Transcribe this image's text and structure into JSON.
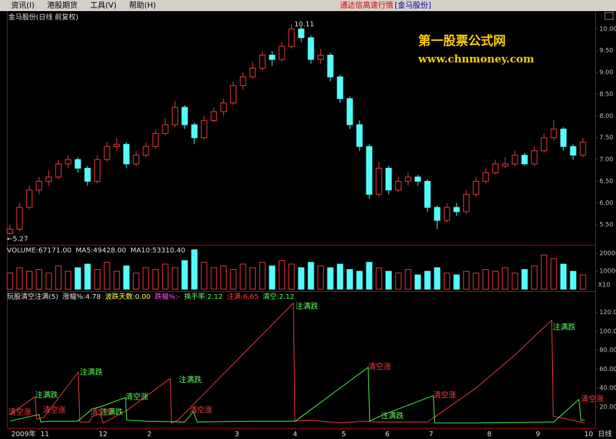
{
  "menu": [
    "资讯(I)",
    "港股期货",
    "工具(V)",
    "帮助(H)"
  ],
  "window_title": {
    "app": "通达信高速行情",
    "stock": "[金马股份]"
  },
  "watermark": [
    "第一股票公式网",
    "www.chnmoney.com"
  ],
  "period": "日线",
  "chart_data": [
    {
      "type": "candlestick",
      "title": "金马股份(日线 前复权)",
      "up_color": "#ff3c3c",
      "down_color": "#54fcfc",
      "xlim": [
        -0.3,
        59.7
      ],
      "ylim": [
        5.04,
        10.38
      ],
      "yticks": [
        {
          "value": 5.5,
          "label": "5.50"
        },
        {
          "value": 6,
          "label": "6.00"
        },
        {
          "value": 6.5,
          "label": "6.50"
        },
        {
          "value": 7,
          "label": "7.00"
        },
        {
          "value": 7.5,
          "label": "7.50"
        },
        {
          "value": 8,
          "label": "8.00"
        },
        {
          "value": 8.5,
          "label": "8.50"
        },
        {
          "value": 9,
          "label": "9.00"
        },
        {
          "value": 9.5,
          "label": "9.50"
        },
        {
          "value": 10,
          "label": "10.00"
        }
      ],
      "open": [
        5.3,
        5.4,
        5.9,
        6.3,
        6.5,
        6.6,
        6.9,
        7.0,
        6.8,
        6.5,
        7.0,
        7.3,
        7.35,
        6.9,
        7.1,
        7.3,
        7.6,
        7.8,
        8.2,
        7.8,
        7.5,
        7.9,
        8.1,
        8.3,
        8.7,
        8.9,
        9.1,
        9.4,
        9.3,
        9.6,
        10.0,
        9.8,
        9.3,
        9.4,
        8.9,
        8.4,
        7.8,
        7.3,
        6.2,
        6.8,
        6.3,
        6.5,
        6.6,
        6.5,
        5.9,
        5.6,
        5.9,
        5.8,
        6.2,
        6.5,
        6.7,
        6.85,
        6.9,
        7.1,
        6.9,
        7.2,
        7.5,
        7.7,
        7.3,
        7.1
      ],
      "high": [
        5.5,
        6.0,
        6.4,
        6.6,
        6.75,
        7.0,
        7.1,
        7.05,
        6.85,
        7.1,
        7.4,
        7.5,
        7.4,
        7.2,
        7.4,
        7.7,
        7.95,
        8.35,
        8.25,
        7.85,
        8.0,
        8.2,
        8.4,
        8.8,
        9.0,
        9.25,
        9.5,
        9.5,
        9.7,
        10.11,
        10.05,
        9.85,
        9.55,
        9.45,
        8.95,
        8.45,
        7.9,
        7.35,
        6.95,
        6.85,
        6.6,
        6.7,
        6.65,
        6.55,
        5.95,
        6.0,
        6.0,
        6.3,
        6.6,
        6.8,
        7.0,
        7.05,
        7.2,
        7.15,
        7.3,
        7.6,
        7.9,
        7.75,
        7.35,
        7.5
      ],
      "low": [
        5.27,
        5.35,
        5.85,
        6.2,
        6.4,
        6.55,
        6.8,
        6.7,
        6.4,
        6.45,
        6.95,
        7.2,
        6.8,
        6.85,
        7.05,
        7.25,
        7.55,
        7.75,
        7.7,
        7.35,
        7.45,
        7.85,
        8.0,
        8.25,
        8.6,
        8.85,
        9.05,
        9.15,
        9.25,
        9.55,
        9.7,
        9.2,
        9.2,
        8.8,
        8.3,
        7.7,
        7.2,
        6.1,
        6.15,
        6.2,
        6.25,
        6.4,
        6.4,
        5.8,
        5.4,
        5.55,
        5.7,
        5.75,
        6.15,
        6.45,
        6.65,
        6.8,
        6.85,
        6.85,
        6.85,
        7.15,
        7.45,
        7.2,
        7.0,
        7.05
      ],
      "close": [
        5.4,
        5.9,
        6.3,
        6.5,
        6.6,
        6.9,
        7.0,
        6.8,
        6.5,
        7.0,
        7.3,
        7.35,
        6.9,
        7.1,
        7.3,
        7.6,
        7.8,
        8.2,
        7.8,
        7.5,
        7.9,
        8.1,
        8.3,
        8.7,
        8.9,
        9.1,
        9.4,
        9.3,
        9.6,
        10.0,
        9.8,
        9.3,
        9.4,
        8.9,
        8.4,
        7.8,
        7.3,
        6.2,
        6.8,
        6.3,
        6.5,
        6.6,
        6.5,
        5.9,
        5.6,
        5.9,
        5.8,
        6.2,
        6.5,
        6.7,
        6.9,
        6.9,
        7.1,
        6.9,
        7.2,
        7.5,
        7.7,
        7.3,
        7.1,
        7.4
      ],
      "annotations": [
        {
          "x": 29,
          "value": 10.11,
          "label": "10.11",
          "anchor": "high"
        },
        {
          "x": 0,
          "value": 5.27,
          "label": "←5.27",
          "anchor": "low"
        }
      ]
    },
    {
      "type": "bar",
      "legend": [
        {
          "text": "VOLUME:67171.00",
          "color": "#e0e0e0"
        },
        {
          "text": "MA5:49428.00",
          "color": "#e0e0e0"
        },
        {
          "text": "MA10:53310.40",
          "color": "#e0e0e0"
        }
      ],
      "scale_label": "X10",
      "xlim": [
        -0.3,
        59.7
      ],
      "ylim": [
        0,
        24000
      ],
      "yticks": [
        10000,
        20000
      ],
      "values": [
        9000,
        12000,
        10000,
        11000,
        9000,
        13000,
        10000,
        12000,
        14000,
        11000,
        15000,
        10000,
        13000,
        9000,
        12000,
        11000,
        14000,
        12000,
        16000,
        22000,
        15000,
        12000,
        13000,
        11000,
        14000,
        12000,
        15000,
        13000,
        16000,
        14000,
        12000,
        15000,
        13000,
        12000,
        14000,
        11000,
        10000,
        15000,
        12000,
        10000,
        9000,
        11000,
        8000,
        10000,
        12000,
        9000,
        8000,
        10000,
        9000,
        11000,
        10000,
        12000,
        9000,
        11000,
        13000,
        19000,
        17000,
        14000,
        10000,
        8000
      ]
    },
    {
      "type": "line",
      "legend": [
        {
          "text": "玩股清空注满(5)",
          "color": "#e0e0e0"
        },
        {
          "text": "涨幅%:4.78",
          "color": "#e0e0e0"
        },
        {
          "text": "波跌天数:0.00",
          "color": "#ffff54"
        },
        {
          "text": "跌幅%:-",
          "color": "#ff54ff"
        },
        {
          "text": "换手率:2.12",
          "color": "#54ff54"
        },
        {
          "text": "注满:6.65",
          "color": "#ff3c3c"
        },
        {
          "text": "清空:2.12",
          "color": "#54ff54"
        }
      ],
      "xlim": [
        -0.3,
        59.7
      ],
      "ylim": [
        0,
        141
      ],
      "yticks": [
        {
          "value": 20,
          "label": "20.00"
        },
        {
          "value": 40,
          "label": "40.00"
        },
        {
          "value": 60,
          "label": "60.00"
        },
        {
          "value": 80,
          "label": "80.00"
        },
        {
          "value": 100,
          "label": "100.00"
        },
        {
          "value": 120,
          "label": "120.00"
        }
      ],
      "xticks": [
        {
          "value": 0,
          "label": "2009年"
        },
        {
          "value": 3,
          "label": "11"
        },
        {
          "value": 9,
          "label": "12"
        },
        {
          "value": 14,
          "label": "2"
        },
        {
          "value": 23,
          "label": "3"
        },
        {
          "value": 29,
          "label": "4"
        },
        {
          "value": 34,
          "label": "5"
        },
        {
          "value": 38.5,
          "label": "6"
        },
        {
          "value": 43,
          "label": "7"
        },
        {
          "value": 49,
          "label": "8"
        },
        {
          "value": 54,
          "label": "9"
        },
        {
          "value": 59,
          "label": "10"
        }
      ],
      "series": [
        {
          "color": "#ff3c3c",
          "x": [
            0,
            2.6,
            2.75,
            3.5,
            7.05,
            7.2,
            8.2,
            8.5,
            9.3,
            9.6,
            12,
            16.5,
            16.65,
            17.3,
            29.2,
            29.35,
            31,
            34,
            36.5,
            38,
            40,
            43,
            48,
            52,
            55.8,
            55.95,
            57,
            59.2
          ],
          "values": [
            12,
            31,
            7,
            9,
            57,
            4,
            4,
            10,
            13,
            3,
            16,
            50,
            3,
            6,
            130,
            5,
            6,
            3,
            5,
            4,
            4,
            4,
            40,
            75,
            112,
            10,
            8,
            3
          ]
        },
        {
          "color": "#54ff54",
          "x": [
            0,
            3,
            3.2,
            4,
            7,
            8.5,
            9.3,
            11.9,
            12.05,
            14,
            18,
            18.9,
            19.3,
            25,
            29.4,
            36.9,
            37.05,
            38.5,
            43.6,
            43.75,
            48,
            55.8,
            56,
            58.6,
            58.8,
            59.2
          ],
          "values": [
            5,
            12,
            4,
            5,
            5,
            18,
            20,
            30,
            6,
            5,
            4,
            15,
            4,
            5,
            5,
            62,
            5,
            12,
            32,
            3,
            3,
            4,
            4,
            28,
            6,
            6
          ]
        }
      ],
      "annotations": [
        {
          "x": -0.15,
          "y": 10,
          "text": "清空涨",
          "color": "#ff3c3c"
        },
        {
          "x": 3.4,
          "y": 12,
          "text": "清空涨",
          "color": "#ff3c3c"
        },
        {
          "x": 8.3,
          "y": 10,
          "text": "清空涨",
          "color": "#ff3c3c"
        },
        {
          "x": 18.5,
          "y": 12,
          "text": "清空涨",
          "color": "#ff3c3c"
        },
        {
          "x": 36.9,
          "y": 58,
          "text": "清空涨",
          "color": "#ff3c3c"
        },
        {
          "x": 43.6,
          "y": 28,
          "text": "清空涨",
          "color": "#ff3c3c"
        },
        {
          "x": 58.8,
          "y": 24,
          "text": "清空涨",
          "color": "#ff3c3c"
        },
        {
          "x": 11.9,
          "y": 26,
          "text": "清空涨",
          "color": "#54ff54"
        },
        {
          "x": 2.6,
          "y": 28,
          "text": "注满跌",
          "color": "#54ff54"
        },
        {
          "x": 7.2,
          "y": 52,
          "text": "注满跌",
          "color": "#54ff54"
        },
        {
          "x": 9.3,
          "y": 10,
          "text": "注满跌",
          "color": "#54ff54"
        },
        {
          "x": 17.4,
          "y": 44,
          "text": "注满跌",
          "color": "#54ff54"
        },
        {
          "x": 29.4,
          "y": 122,
          "text": "注满跌",
          "color": "#54ff54"
        },
        {
          "x": 38.2,
          "y": 6,
          "text": "注满跌",
          "color": "#54ff54"
        },
        {
          "x": 55.9,
          "y": 100,
          "text": "注满跌",
          "color": "#54ff54"
        }
      ]
    }
  ]
}
